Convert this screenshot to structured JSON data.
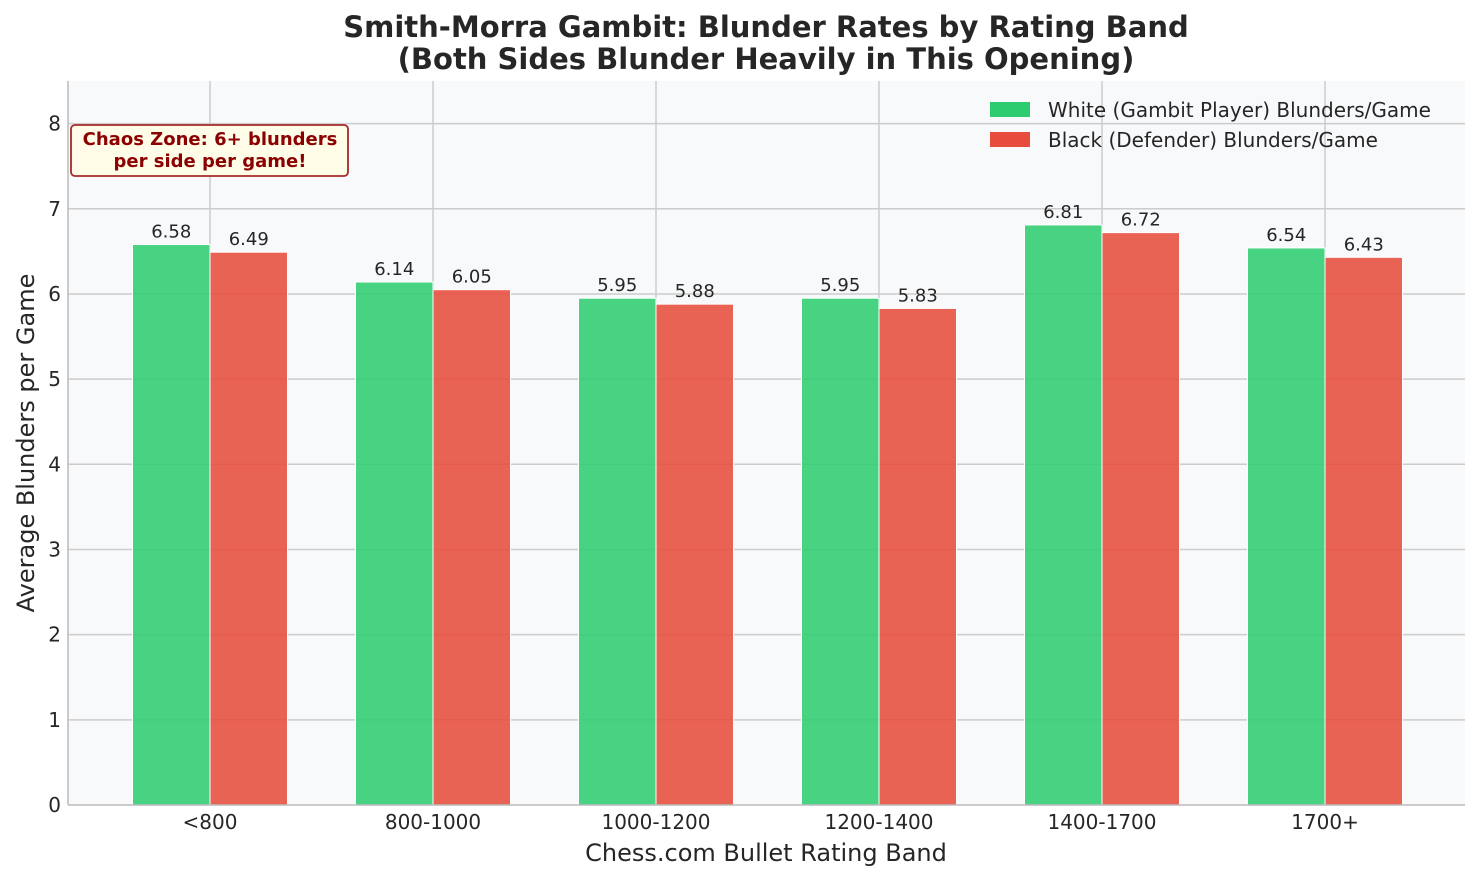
{
  "chart_data": {
    "type": "bar",
    "title": "Smith-Morra Gambit: Blunder Rates by Rating Band",
    "subtitle": "(Both Sides Blunder Heavily in This Opening)",
    "xlabel": "Chess.com Bullet Rating Band",
    "ylabel": "Average Blunders per Game",
    "categories": [
      "<800",
      "800-1000",
      "1000-1200",
      "1200-1400",
      "1400-1700",
      "1700+"
    ],
    "series": [
      {
        "name": "White (Gambit Player) Blunders/Game",
        "values": [
          6.58,
          6.14,
          5.95,
          5.95,
          6.81,
          6.54
        ],
        "color": "#2ecc71"
      },
      {
        "name": "Black (Defender) Blunders/Game",
        "values": [
          6.49,
          6.05,
          5.88,
          5.83,
          6.72,
          6.43
        ],
        "color": "#e74c3c"
      }
    ],
    "ylim": [
      0,
      8.5
    ],
    "yticks": [
      "0",
      "1",
      "2",
      "3",
      "4",
      "5",
      "6",
      "7",
      "8"
    ],
    "grid": true,
    "legend_position": "top-right",
    "annotation": {
      "line1": "Chaos Zone: 6+ blunders",
      "line2": "per side per game!",
      "text_color": "#8b0000",
      "background": "#fffde7"
    },
    "plot_background": "#f8f9fb",
    "grid_color": "#cccccc"
  }
}
